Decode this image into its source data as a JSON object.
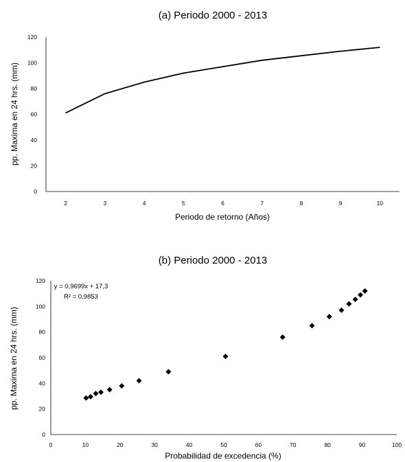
{
  "chart_data": [
    {
      "type": "line",
      "title": "(a) Periodo 2000 - 2013",
      "xlabel": "Periodo de retorno (Años)",
      "ylabel": "pp. Maxima en 24 hrs. (mm)",
      "x": [
        2,
        3,
        4,
        5,
        6,
        7,
        8,
        9,
        10
      ],
      "x_ticks": [
        "2",
        "3",
        "4",
        "5",
        "6",
        "7",
        "8",
        "9",
        "10"
      ],
      "y": [
        61,
        76,
        85,
        92,
        97,
        102,
        105.5,
        109,
        112
      ],
      "ylim": [
        0,
        120
      ],
      "y_ticks": [
        "0",
        "20",
        "40",
        "60",
        "80",
        "100",
        "120"
      ],
      "grid": false,
      "line_color": "#000000"
    },
    {
      "type": "scatter",
      "title": "(b) Periodo 2000 - 2013",
      "xlabel": "Probabilidad de excedencia (%)",
      "ylabel": "pp. Maxima en 24 hrs. (mm)",
      "x": [
        10.2,
        11.5,
        13,
        14.5,
        17,
        20.5,
        25.5,
        34,
        50.5,
        67,
        75.5,
        80.5,
        84,
        86.2,
        88,
        89.5,
        90.8
      ],
      "y": [
        28.5,
        29.5,
        32,
        33,
        35,
        38,
        42,
        49,
        61,
        76,
        85,
        92,
        97,
        102,
        105.5,
        109,
        112
      ],
      "xlim": [
        0,
        100
      ],
      "ylim": [
        0,
        120
      ],
      "x_ticks": [
        "0",
        "10",
        "20",
        "30",
        "40",
        "50",
        "60",
        "70",
        "80",
        "90",
        "100"
      ],
      "y_ticks": [
        "0",
        "20",
        "40",
        "60",
        "80",
        "100",
        "120"
      ],
      "annotation": [
        "y = 0,9699x + 17,3",
        "R² = 0,9853"
      ],
      "grid": false,
      "marker": "diamond",
      "marker_color": "#000000"
    }
  ]
}
